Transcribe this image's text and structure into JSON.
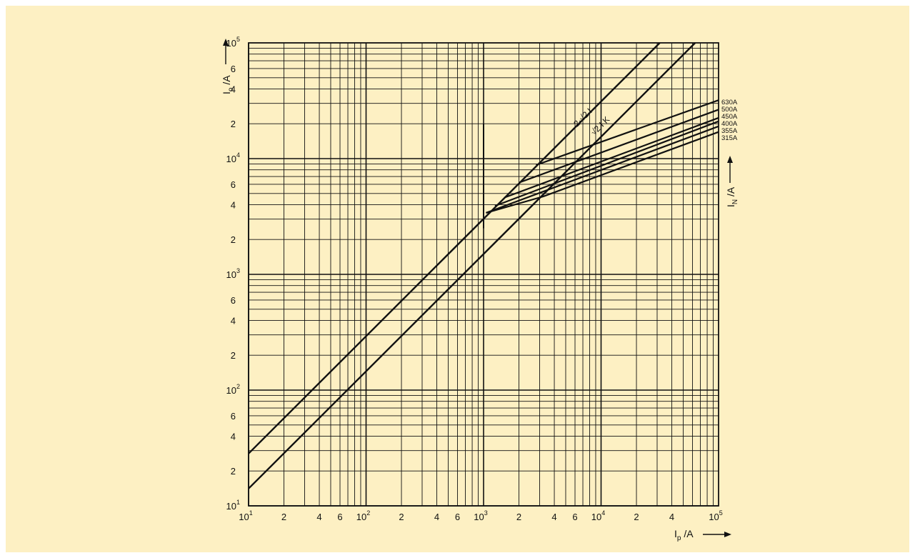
{
  "chart_data": {
    "type": "line",
    "x_scale": "log",
    "y_scale": "log",
    "xlim": [
      10,
      100000
    ],
    "ylim": [
      10,
      100000
    ],
    "grid": true,
    "xlabel": {
      "main": "I",
      "sub": "p",
      "unit": " /A"
    },
    "ylabel": {
      "main": "I",
      "sub": "o",
      "unit": " /A"
    },
    "right_label": {
      "main": "I",
      "sub": "N",
      "unit": " /A"
    },
    "x_ticks": [
      {
        "value": 10,
        "base": "10",
        "exp": "1"
      },
      {
        "value": 20,
        "base": "2"
      },
      {
        "value": 40,
        "base": "4"
      },
      {
        "value": 60,
        "base": "6"
      },
      {
        "value": 100,
        "base": "10",
        "exp": "2"
      },
      {
        "value": 200,
        "base": "2"
      },
      {
        "value": 400,
        "base": "4"
      },
      {
        "value": 600,
        "base": "6"
      },
      {
        "value": 1000,
        "base": "10",
        "exp": "3"
      },
      {
        "value": 2000,
        "base": "2"
      },
      {
        "value": 4000,
        "base": "4"
      },
      {
        "value": 6000,
        "base": "6"
      },
      {
        "value": 10000,
        "base": "10",
        "exp": "4"
      },
      {
        "value": 20000,
        "base": "2"
      },
      {
        "value": 40000,
        "base": "4"
      },
      {
        "value": 100000,
        "base": "10",
        "exp": "5"
      }
    ],
    "y_ticks": [
      {
        "value": 10,
        "base": "10",
        "exp": "1"
      },
      {
        "value": 20,
        "base": "2"
      },
      {
        "value": 40,
        "base": "4"
      },
      {
        "value": 60,
        "base": "6"
      },
      {
        "value": 100,
        "base": "10",
        "exp": "2"
      },
      {
        "value": 200,
        "base": "2"
      },
      {
        "value": 400,
        "base": "4"
      },
      {
        "value": 600,
        "base": "6"
      },
      {
        "value": 1000,
        "base": "10",
        "exp": "3"
      },
      {
        "value": 2000,
        "base": "2"
      },
      {
        "value": 4000,
        "base": "4"
      },
      {
        "value": 6000,
        "base": "6"
      },
      {
        "value": 10000,
        "base": "10",
        "exp": "4"
      },
      {
        "value": 20000,
        "base": "2"
      },
      {
        "value": 40000,
        "base": "4"
      },
      {
        "value": 60000,
        "base": "6"
      },
      {
        "value": 100000,
        "base": "10",
        "exp": "5"
      }
    ],
    "reference_lines": [
      {
        "label": "2·√2 I",
        "points": [
          [
            10,
            28.3
          ],
          [
            31600,
            100000
          ]
        ]
      },
      {
        "label": "√2 I K",
        "points": [
          [
            10,
            14.1
          ],
          [
            63200,
            100000
          ]
        ]
      }
    ],
    "fuse_curves": [
      {
        "name": "630A",
        "points": [
          [
            2800,
            8800
          ],
          [
            100000,
            32000
          ]
        ]
      },
      {
        "name": "500A",
        "points": [
          [
            2000,
            6200
          ],
          [
            100000,
            26500
          ]
        ]
      },
      {
        "name": "450A",
        "points": [
          [
            1500,
            4600
          ],
          [
            100000,
            22500
          ]
        ]
      },
      {
        "name": "400A",
        "points": [
          [
            1250,
            3900
          ],
          [
            100000,
            21000
          ]
        ]
      },
      {
        "name": "355A",
        "points": [
          [
            1050,
            3400
          ],
          [
            100000,
            19000
          ]
        ]
      },
      {
        "name": "315A",
        "points": [
          [
            1050,
            3400
          ],
          [
            3200,
            4700
          ],
          [
            100000,
            17000
          ]
        ]
      }
    ],
    "marker_x": 1000
  },
  "colors": {
    "background": "#fdf0c3",
    "ink": "#111111"
  }
}
